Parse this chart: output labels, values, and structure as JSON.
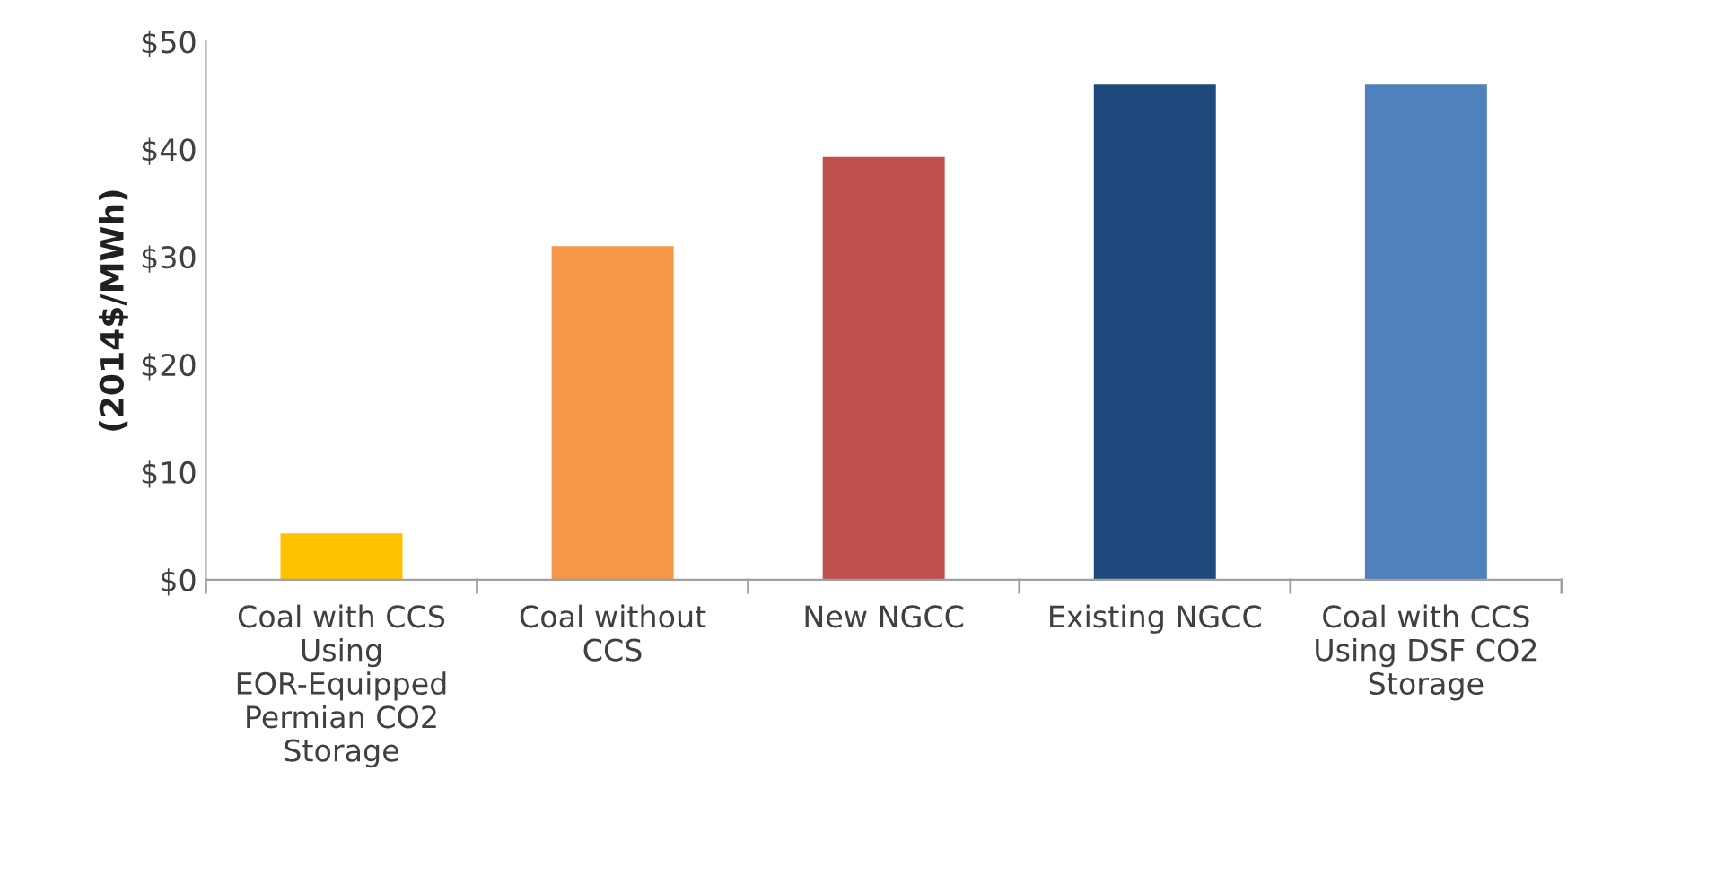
{
  "chart_data": {
    "type": "bar",
    "ylabel": "(2014$/MWh)",
    "categories": [
      "Coal with CCS Using EOR-Equipped Permian CO2 Storage",
      "Coal without CCS",
      "New NGCC",
      "Existing NGCC",
      "Coal with CCS Using DSF CO2 Storage"
    ],
    "values": [
      4.3,
      31,
      39.3,
      46,
      46
    ],
    "colors": [
      "#ffc000",
      "#f79646",
      "#c0504d",
      "#1f497d",
      "#4f81bd"
    ],
    "ylim": [
      0,
      50
    ],
    "yticks": [
      {
        "value": 0,
        "label": "$0"
      },
      {
        "value": 10,
        "label": "$10"
      },
      {
        "value": 20,
        "label": "$20"
      },
      {
        "value": 30,
        "label": "$30"
      },
      {
        "value": 40,
        "label": "$40"
      },
      {
        "value": 50,
        "label": "$50"
      }
    ],
    "grid": false,
    "legend": false
  }
}
